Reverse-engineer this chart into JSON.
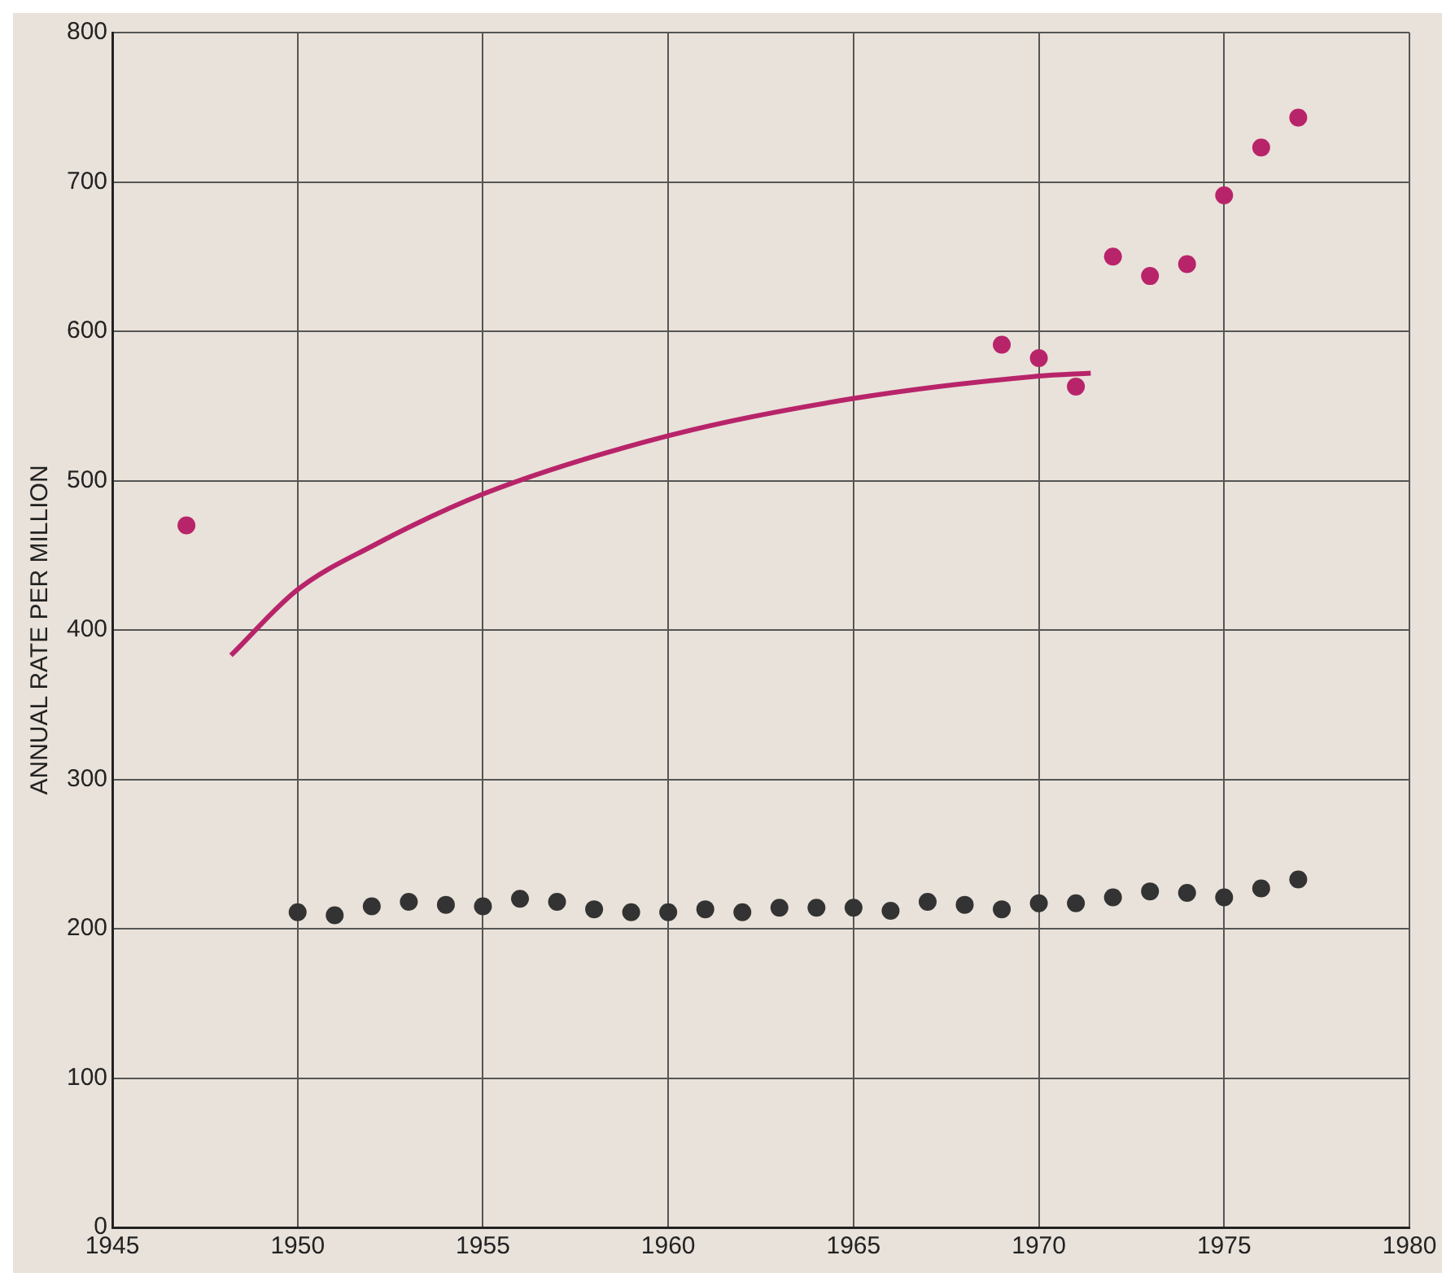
{
  "chart_data": {
    "type": "scatter",
    "ylabel": "ANNUAL RATE PER MILLION",
    "xlim": [
      1945,
      1980
    ],
    "xticks": [
      1945,
      1950,
      1955,
      1960,
      1965,
      1970,
      1975,
      1980
    ],
    "ylim": [
      0,
      800
    ],
    "yticks": [
      0,
      100,
      200,
      300,
      400,
      500,
      600,
      700,
      800
    ],
    "grid": true,
    "legend": false,
    "marker": "circle",
    "series": [
      {
        "color": "#333333",
        "x": [
          1950,
          1951,
          1952,
          1953,
          1954,
          1955,
          1956,
          1957,
          1958,
          1959,
          1960,
          1961,
          1962,
          1963,
          1964,
          1965,
          1966,
          1967,
          1968,
          1969,
          1970,
          1971,
          1972,
          1973,
          1974,
          1975,
          1976,
          1977
        ],
        "values": [
          211,
          209,
          215,
          218,
          216,
          215,
          220,
          218,
          213,
          211,
          211,
          213,
          211,
          214,
          214,
          214,
          212,
          218,
          216,
          213,
          217,
          217,
          221,
          225,
          224,
          221,
          227,
          233
        ]
      },
      {
        "color": "#b8246a",
        "x": [
          1947,
          1969,
          1970,
          1971,
          1972,
          1973,
          1974,
          1975,
          1976,
          1977
        ],
        "values": [
          470,
          591,
          582,
          563,
          650,
          637,
          645,
          691,
          723,
          743
        ]
      },
      {
        "type": "line",
        "color": "#b8246a",
        "marker": "none",
        "x": [
          1948.2,
          1950,
          1952,
          1955,
          1960,
          1965,
          1970,
          1971.4
        ],
        "values": [
          383,
          427,
          456,
          491,
          530,
          555,
          570,
          572
        ]
      }
    ]
  }
}
